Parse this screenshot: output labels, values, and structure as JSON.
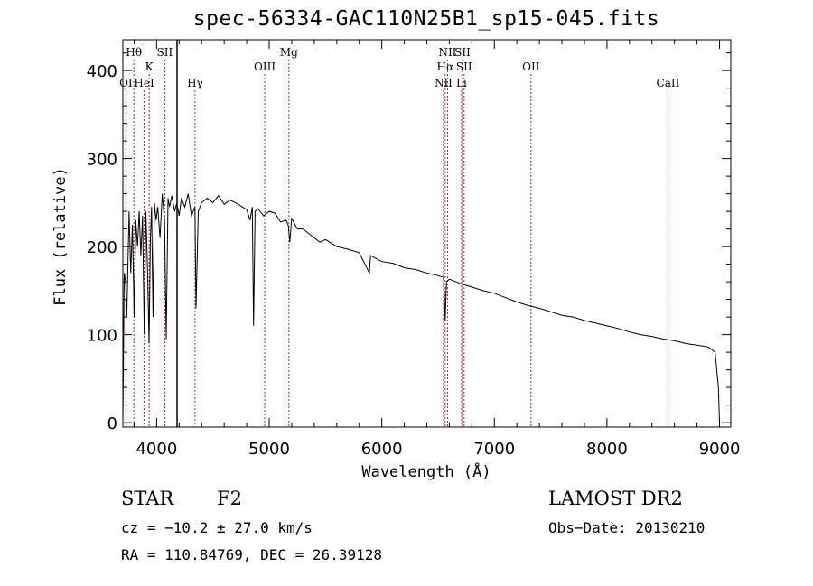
{
  "title": "spec-56334-GAC110N25B1_sp15-045.fits",
  "info": {
    "class": "STAR",
    "subclass": "F2",
    "cz": "cz = −10.2 ± 27.0 km/s",
    "radec": "RA = 110.84769, DEC =  26.39128",
    "survey": "LAMOST DR2",
    "obs_date": "Obs−Date: 20130210"
  },
  "colors": {
    "spectrum": "#000000",
    "line_marker": "#b22222",
    "axes": "#000000"
  },
  "chart_data": {
    "type": "line",
    "xlabel": "Wavelength (Å)",
    "ylabel": "Flux (relative)",
    "xlim": [
      3700,
      9100
    ],
    "ylim": [
      -5,
      435
    ],
    "xticks": [
      4000,
      5000,
      6000,
      7000,
      8000,
      9000
    ],
    "yticks": [
      0,
      100,
      200,
      300,
      400
    ],
    "grid": false,
    "spectrum": {
      "x": [
        3700,
        3712,
        3725,
        3735,
        3745,
        3755,
        3770,
        3785,
        3800,
        3815,
        3830,
        3845,
        3860,
        3875,
        3890,
        3905,
        3920,
        3933,
        3945,
        3955,
        3968,
        3980,
        3995,
        4010,
        4030,
        4050,
        4070,
        4085,
        4101,
        4115,
        4135,
        4160,
        4180,
        4200,
        4220,
        4250,
        4280,
        4310,
        4340,
        4350,
        4370,
        4400,
        4450,
        4500,
        4550,
        4600,
        4650,
        4700,
        4750,
        4800,
        4830,
        4850,
        4861,
        4875,
        4900,
        4950,
        5000,
        5050,
        5100,
        5150,
        5170,
        5183,
        5200,
        5250,
        5300,
        5350,
        5400,
        5450,
        5500,
        5600,
        5700,
        5800,
        5890,
        5900,
        6000,
        6100,
        6200,
        6300,
        6400,
        6500,
        6550,
        6563,
        6575,
        6600,
        6700,
        6800,
        6900,
        7000,
        7100,
        7200,
        7300,
        7400,
        7500,
        7600,
        7700,
        7800,
        7900,
        8000,
        8100,
        8200,
        8300,
        8400,
        8500,
        8600,
        8700,
        8800,
        8900,
        8960,
        8990,
        9000
      ],
      "y": [
        0,
        170,
        160,
        120,
        180,
        240,
        170,
        225,
        120,
        230,
        200,
        240,
        190,
        235,
        100,
        240,
        170,
        90,
        210,
        245,
        120,
        250,
        230,
        245,
        210,
        260,
        230,
        95,
        255,
        245,
        258,
        240,
        250,
        235,
        255,
        245,
        260,
        235,
        245,
        130,
        240,
        250,
        255,
        250,
        258,
        248,
        253,
        250,
        246,
        242,
        230,
        245,
        110,
        240,
        243,
        235,
        240,
        238,
        228,
        230,
        224,
        205,
        232,
        220,
        220,
        215,
        210,
        205,
        208,
        200,
        197,
        193,
        170,
        190,
        183,
        181,
        176,
        174,
        170,
        167,
        165,
        115,
        160,
        163,
        158,
        154,
        150,
        147,
        142,
        137,
        133,
        130,
        126,
        122,
        120,
        116,
        113,
        110,
        107,
        103,
        100,
        98,
        95,
        93,
        90,
        88,
        86,
        80,
        40,
        0
      ]
    },
    "lines": [
      {
        "label": "OI",
        "wave": 3727,
        "row": 3
      },
      {
        "label": "Hθ",
        "wave": 3798,
        "row": 1
      },
      {
        "label": "HeI",
        "wave": 3889,
        "row": 3
      },
      {
        "label": "K",
        "wave": 3934,
        "row": 2
      },
      {
        "label": "SII",
        "wave": 4072,
        "row": 1
      },
      {
        "label": "Hγ",
        "wave": 4341,
        "row": 3
      },
      {
        "label": "OIII",
        "wave": 4960,
        "row": 2
      },
      {
        "label": "Mg",
        "wave": 5175,
        "row": 1
      },
      {
        "label": "NII",
        "wave": 6548,
        "row": 3
      },
      {
        "label": "Hα",
        "wave": 6563,
        "row": 2
      },
      {
        "label": "NII",
        "wave": 6584,
        "row": 1
      },
      {
        "label": "SII",
        "wave": 6717,
        "row": 1
      },
      {
        "label": "SII",
        "wave": 6731,
        "row": 2
      },
      {
        "label": "Li",
        "wave": 6708,
        "row": 3
      },
      {
        "label": "OII",
        "wave": 7325,
        "row": 2
      },
      {
        "label": "CaII",
        "wave": 8542,
        "row": 3
      }
    ]
  }
}
